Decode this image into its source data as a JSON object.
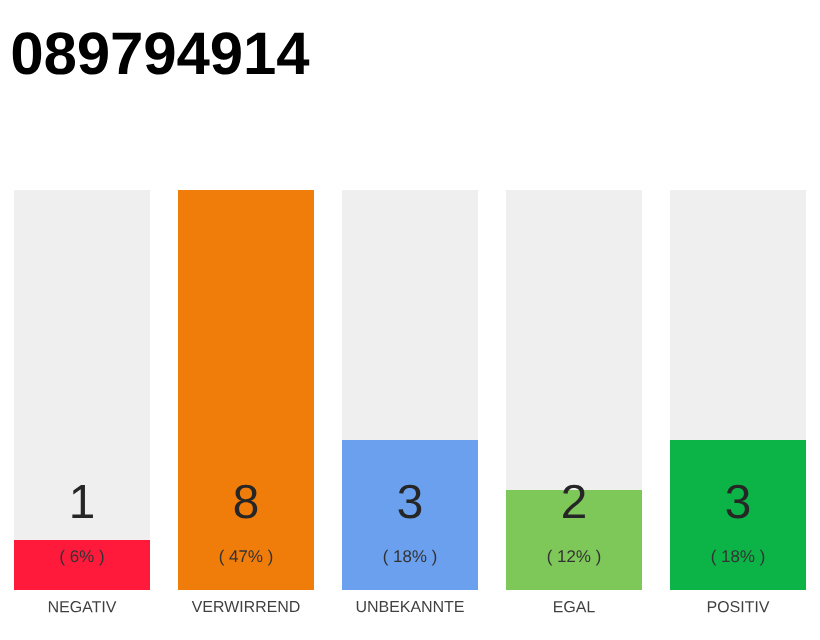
{
  "chart_data": {
    "type": "bar",
    "title": "089794914",
    "categories": [
      "NEGATIV",
      "VERWIRREND",
      "UNBEKANNTE",
      "EGAL",
      "POSITIV"
    ],
    "values": [
      1,
      8,
      3,
      2,
      3
    ],
    "colors": [
      "#ff1a3c",
      "#f07d0a",
      "#6aa0ee",
      "#7ec85a",
      "#0cb347"
    ],
    "value_labels": [
      "1",
      "8",
      "3",
      "2",
      "3"
    ],
    "annotations": [
      "( 6% )",
      "( 47% )",
      "( 18% )",
      "( 12% )",
      "( 18% )"
    ]
  }
}
